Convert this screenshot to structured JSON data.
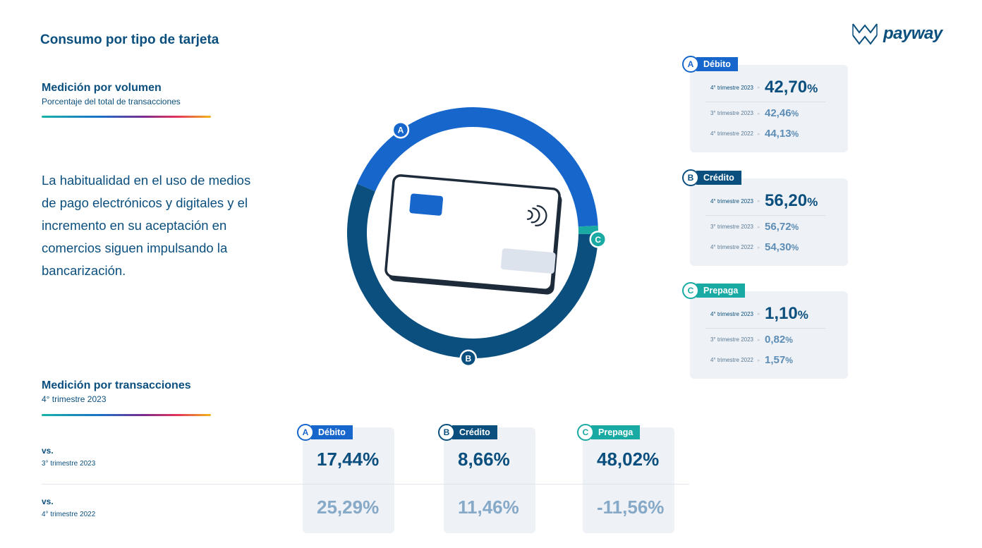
{
  "title": "Consumo por tipo de tarjeta",
  "brand": "payway",
  "volume": {
    "heading": "Medición por volumen",
    "subheading": "Porcentaje del total de transacciones"
  },
  "paragraph": "La habitualidad en el uso de medios de pago electrónicos y digitales y el incremento en su aceptación en comercios siguen impulsando la bancarización.",
  "chart_data": {
    "type": "pie",
    "categories": [
      "Débito",
      "Crédito",
      "Prepaga"
    ],
    "values": [
      42.7,
      56.2,
      1.1
    ],
    "markers": [
      "A",
      "B",
      "C"
    ],
    "colors": [
      "#1766cc",
      "#0b4f7e",
      "#19aaa3"
    ]
  },
  "cards": [
    {
      "letter": "A",
      "name": "Débito",
      "rows": [
        {
          "label": "4° trimestre 2023",
          "value": "42,70",
          "pct": "%"
        },
        {
          "label": "3° trimestre 2023",
          "value": "42,46",
          "pct": "%"
        },
        {
          "label": "4° trimestre 2022",
          "value": "44,13",
          "pct": "%"
        }
      ]
    },
    {
      "letter": "B",
      "name": "Crédito",
      "rows": [
        {
          "label": "4° trimestre 2023",
          "value": "56,20",
          "pct": "%"
        },
        {
          "label": "3° trimestre 2023",
          "value": "56,72",
          "pct": "%"
        },
        {
          "label": "4° trimestre 2022",
          "value": "54,30",
          "pct": "%"
        }
      ]
    },
    {
      "letter": "C",
      "name": "Prepaga",
      "rows": [
        {
          "label": "4° trimestre 2023",
          "value": "1,10",
          "pct": "%"
        },
        {
          "label": "3° trimestre 2023",
          "value": "0,82",
          "pct": "%"
        },
        {
          "label": "4° trimestre 2022",
          "value": "1,57",
          "pct": "%"
        }
      ]
    }
  ],
  "transactions": {
    "heading": "Medición por transacciones",
    "subheading": "4° trimestre 2023",
    "rows": [
      {
        "vs": "vs.",
        "period": "3° trimestre 2023"
      },
      {
        "vs": "vs.",
        "period": "4° trimestre 2022"
      }
    ],
    "columns": [
      {
        "letter": "A",
        "name": "Débito",
        "v1": "17,44%",
        "v2": "25,29%"
      },
      {
        "letter": "B",
        "name": "Crédito",
        "v1": "8,66%",
        "v2": "11,46%"
      },
      {
        "letter": "C",
        "name": "Prepaga",
        "v1": "48,02%",
        "v2": "-11,56%"
      }
    ]
  }
}
